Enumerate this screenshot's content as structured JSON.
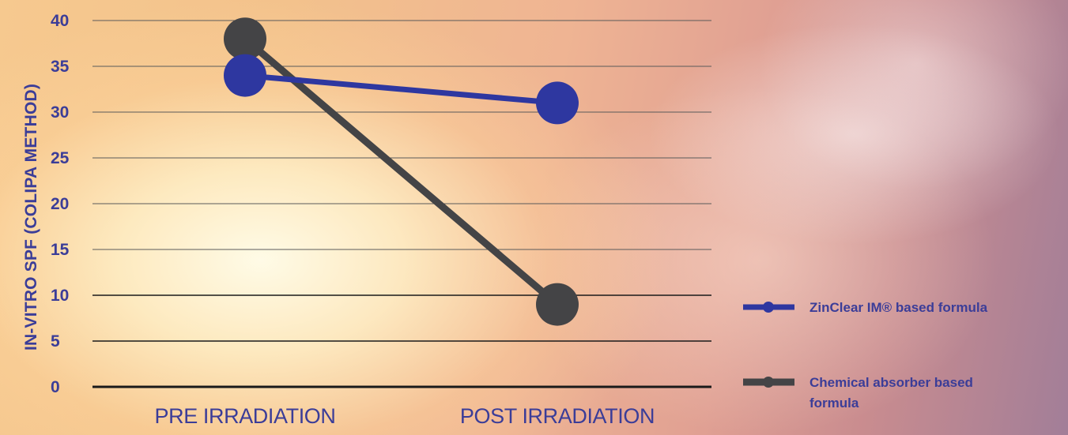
{
  "chart_data": {
    "type": "line",
    "ylabel": "IN-VITRO SPF (COLIPA METHOD)",
    "xlabel": "",
    "categories": [
      "PRE IRRADIATION",
      "POST IRRADIATION"
    ],
    "ylim": [
      0,
      40
    ],
    "yticks": [
      0,
      5,
      10,
      15,
      20,
      25,
      30,
      35,
      40
    ],
    "grid": true,
    "legend_position": "right",
    "series": [
      {
        "name": "ZinClear IM® based formula",
        "values": [
          34,
          31
        ],
        "color": "#2e37a0",
        "legend_lines": [
          "ZinClear IM® based formula"
        ]
      },
      {
        "name": "Chemical absorber based formula",
        "values": [
          38,
          9
        ],
        "color": "#444446",
        "legend_lines": [
          "Chemical absorber based",
          "formula"
        ]
      }
    ]
  }
}
